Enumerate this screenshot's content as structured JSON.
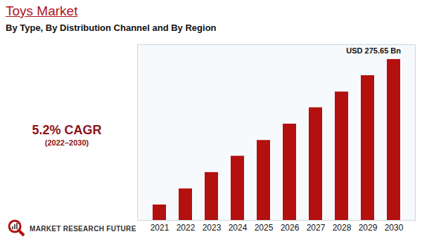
{
  "chart_data": {
    "type": "bar",
    "title": "Toys Market",
    "subtitle": "By Type, By Distribution Channel and By Region",
    "annotations": [
      "5.2% CAGR",
      "(2022–2030)",
      "MARKET RESEARCH FUTURE"
    ],
    "categories": [
      "2021",
      "2022",
      "2023",
      "2024",
      "2025",
      "2026",
      "2027",
      "2028",
      "2029",
      "2030"
    ],
    "values": [
      26.5,
      54,
      82,
      110,
      137,
      165,
      193,
      220,
      248,
      275.65
    ],
    "value_labels": [
      null,
      null,
      null,
      null,
      null,
      null,
      null,
      null,
      null,
      "USD 275.65 Bn"
    ],
    "color": "#b3100f",
    "ylim": [
      0,
      301
    ],
    "tick_labels": "x",
    "grid": false
  }
}
